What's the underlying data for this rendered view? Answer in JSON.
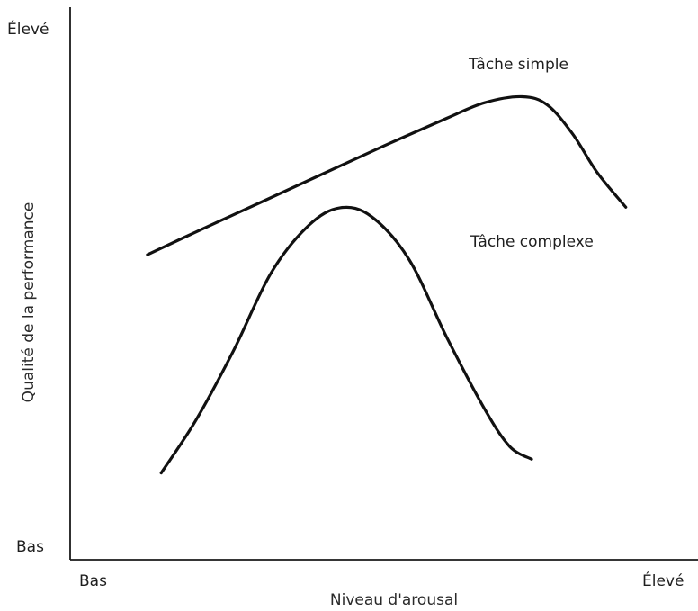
{
  "chart_data": {
    "type": "line",
    "title": "",
    "xlabel": "Niveau d'arousal",
    "ylabel": "Qualité de la performance",
    "x_tick_labels": {
      "low": "Bas",
      "high": "Élevé"
    },
    "y_tick_labels": {
      "low": "Bas",
      "high": "Élevé"
    },
    "xlim": [
      0,
      100
    ],
    "ylim": [
      0,
      100
    ],
    "grid": false,
    "legend": "none",
    "series": [
      {
        "name": "Tâche simple",
        "points": [
          [
            12.3,
            55.2
          ],
          [
            20,
            59.3
          ],
          [
            30,
            64.5
          ],
          [
            40,
            69.7
          ],
          [
            50,
            74.9
          ],
          [
            60,
            79.9
          ],
          [
            66,
            82.7
          ],
          [
            72,
            83.8
          ],
          [
            76,
            82.3
          ],
          [
            80,
            77.1
          ],
          [
            84,
            70
          ],
          [
            88.5,
            63.8
          ]
        ]
      },
      {
        "name": "Tâche complexe",
        "points": [
          [
            14.5,
            15.7
          ],
          [
            20,
            25.2
          ],
          [
            26,
            37.8
          ],
          [
            32,
            51.9
          ],
          [
            38,
            60.5
          ],
          [
            43,
            63.7
          ],
          [
            48,
            62.1
          ],
          [
            54,
            54.3
          ],
          [
            60,
            40.2
          ],
          [
            66,
            27.3
          ],
          [
            70,
            20.5
          ],
          [
            73.5,
            18.2
          ]
        ]
      }
    ]
  }
}
